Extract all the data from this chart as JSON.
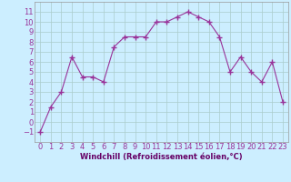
{
  "x": [
    0,
    1,
    2,
    3,
    4,
    5,
    6,
    7,
    8,
    9,
    10,
    11,
    12,
    13,
    14,
    15,
    16,
    17,
    18,
    19,
    20,
    21,
    22,
    23
  ],
  "y": [
    -1,
    1.5,
    3,
    6.5,
    4.5,
    4.5,
    4.0,
    7.5,
    8.5,
    8.5,
    8.5,
    10.0,
    10.0,
    10.5,
    11.0,
    10.5,
    10.0,
    8.5,
    5.0,
    6.5,
    5.0,
    4.0,
    6.0,
    2.0
  ],
  "line_color": "#993399",
  "marker": "+",
  "marker_size": 4,
  "bg_color": "#cceeff",
  "grid_color": "#aacccc",
  "xlabel": "Windchill (Refroidissement éolien,°C)",
  "xlabel_color": "#660066",
  "xlabel_fontsize": 6,
  "tick_label_color": "#993399",
  "tick_fontsize": 6,
  "ylim": [
    -2,
    12
  ],
  "xlim": [
    -0.5,
    23.5
  ],
  "yticks": [
    -1,
    0,
    1,
    2,
    3,
    4,
    5,
    6,
    7,
    8,
    9,
    10,
    11
  ],
  "xticks": [
    0,
    1,
    2,
    3,
    4,
    5,
    6,
    7,
    8,
    9,
    10,
    11,
    12,
    13,
    14,
    15,
    16,
    17,
    18,
    19,
    20,
    21,
    22,
    23
  ]
}
